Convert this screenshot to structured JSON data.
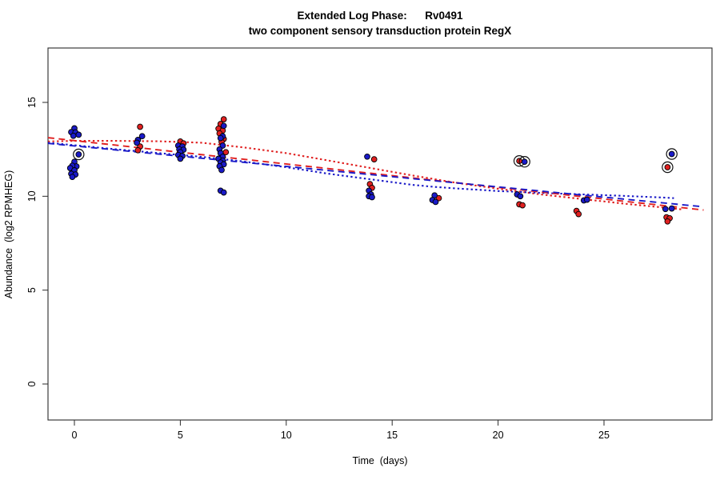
{
  "chart_data": {
    "type": "scatter",
    "title_line1": "Extended Log Phase:      Rv0491",
    "title_line2": "two component sensory transduction protein RegX",
    "xlabel": "Time  (days)",
    "ylabel": "Abundance  (log2 RPMHEG)",
    "x_ticks": [
      0,
      5,
      10,
      15,
      20,
      25
    ],
    "y_ticks": [
      0,
      5,
      10,
      15
    ],
    "xlim": [
      -1.25,
      30.1
    ],
    "ylim": [
      -1.9,
      17.9
    ],
    "grid": false,
    "legend": "none",
    "colors": {
      "red": "#e02020",
      "blue": "#1a1ac8",
      "point_outline": "#000000",
      "box": "#2a2a2a",
      "circled_ring": "#111111"
    },
    "series": [
      {
        "name": "red-condition-points",
        "color": "red",
        "points": [
          [
            3.1,
            13.7
          ],
          [
            3.1,
            12.65
          ],
          [
            3.0,
            12.45
          ],
          [
            5.0,
            12.92
          ],
          [
            5.15,
            12.82
          ],
          [
            7.05,
            14.1
          ],
          [
            6.9,
            13.85
          ],
          [
            6.8,
            13.6
          ],
          [
            7.0,
            13.5
          ],
          [
            6.85,
            13.35
          ],
          [
            7.05,
            13.05
          ],
          [
            6.95,
            12.9
          ],
          [
            7.15,
            12.35
          ],
          [
            14.15,
            11.97
          ],
          [
            13.95,
            10.65
          ],
          [
            14.05,
            10.45
          ],
          [
            17.2,
            9.9
          ],
          [
            21.0,
            9.57
          ],
          [
            21.15,
            9.52
          ],
          [
            23.7,
            9.22
          ],
          [
            23.8,
            9.05
          ],
          [
            27.95,
            8.88
          ],
          [
            28.1,
            8.83
          ],
          [
            28.0,
            8.66
          ]
        ]
      },
      {
        "name": "blue-condition-points",
        "color": "blue",
        "points": [
          [
            0.0,
            13.62
          ],
          [
            -0.15,
            13.42
          ],
          [
            0.05,
            13.4
          ],
          [
            0.2,
            13.28
          ],
          [
            -0.05,
            13.22
          ],
          [
            0.0,
            11.84
          ],
          [
            0.1,
            11.59
          ],
          [
            -0.1,
            11.63
          ],
          [
            -0.2,
            11.5
          ],
          [
            0.0,
            11.38
          ],
          [
            -0.15,
            11.2
          ],
          [
            0.05,
            11.16
          ],
          [
            -0.1,
            11.03
          ],
          [
            3.2,
            13.2
          ],
          [
            3.0,
            13.0
          ],
          [
            2.95,
            12.85
          ],
          [
            4.9,
            12.7
          ],
          [
            5.1,
            12.65
          ],
          [
            4.95,
            12.5
          ],
          [
            5.15,
            12.48
          ],
          [
            5.0,
            12.35
          ],
          [
            4.9,
            12.2
          ],
          [
            5.1,
            12.15
          ],
          [
            5.0,
            12.0
          ],
          [
            7.05,
            13.75
          ],
          [
            7.0,
            13.2
          ],
          [
            6.9,
            13.1
          ],
          [
            7.0,
            12.7
          ],
          [
            6.85,
            12.5
          ],
          [
            6.9,
            12.3
          ],
          [
            7.0,
            12.1
          ],
          [
            6.8,
            12.0
          ],
          [
            7.0,
            11.9
          ],
          [
            6.9,
            11.8
          ],
          [
            7.05,
            11.7
          ],
          [
            6.85,
            11.6
          ],
          [
            6.95,
            11.4
          ],
          [
            6.9,
            10.3
          ],
          [
            7.05,
            10.2
          ],
          [
            13.82,
            12.11
          ],
          [
            13.9,
            10.3
          ],
          [
            14.0,
            10.1
          ],
          [
            13.9,
            10.0
          ],
          [
            14.05,
            9.95
          ],
          [
            17.0,
            10.05
          ],
          [
            16.9,
            9.8
          ],
          [
            17.05,
            9.7
          ],
          [
            20.9,
            10.1
          ],
          [
            21.05,
            10.0
          ],
          [
            24.05,
            9.78
          ],
          [
            24.2,
            9.82
          ],
          [
            27.9,
            9.32
          ],
          [
            28.2,
            9.35
          ]
        ]
      }
    ],
    "circled_points": [
      {
        "x": 0.2,
        "y": 12.23,
        "color": "blue"
      },
      {
        "x": 21.0,
        "y": 11.88,
        "color": "red"
      },
      {
        "x": 21.25,
        "y": 11.84,
        "color": "blue"
      },
      {
        "x": 28.2,
        "y": 12.25,
        "color": "blue"
      },
      {
        "x": 28.0,
        "y": 11.55,
        "color": "red"
      }
    ],
    "trend_lines": [
      {
        "name": "red-loess-dotted",
        "color": "red",
        "style": "dotted",
        "points": [
          [
            -1.25,
            12.92
          ],
          [
            0,
            12.95
          ],
          [
            2,
            12.95
          ],
          [
            4,
            12.93
          ],
          [
            6,
            12.85
          ],
          [
            8,
            12.6
          ],
          [
            10,
            12.3
          ],
          [
            12,
            11.9
          ],
          [
            14,
            11.5
          ],
          [
            16,
            11.1
          ],
          [
            18,
            10.72
          ],
          [
            20,
            10.4
          ],
          [
            22,
            10.1
          ],
          [
            24,
            9.85
          ],
          [
            26,
            9.6
          ],
          [
            28,
            9.38
          ],
          [
            28.7,
            9.3
          ]
        ]
      },
      {
        "name": "blue-loess-dotted",
        "color": "blue",
        "style": "dotted",
        "points": [
          [
            -1.25,
            12.85
          ],
          [
            0,
            12.72
          ],
          [
            2,
            12.5
          ],
          [
            4,
            12.3
          ],
          [
            6,
            12.1
          ],
          [
            8,
            11.85
          ],
          [
            10,
            11.55
          ],
          [
            12,
            11.2
          ],
          [
            13,
            11.05
          ],
          [
            14,
            10.9
          ],
          [
            15,
            10.75
          ],
          [
            16,
            10.6
          ],
          [
            17,
            10.5
          ],
          [
            18,
            10.42
          ],
          [
            19,
            10.35
          ],
          [
            20,
            10.28
          ],
          [
            22,
            10.18
          ],
          [
            24,
            10.1
          ],
          [
            26,
            10.02
          ],
          [
            28,
            9.92
          ],
          [
            28.3,
            9.9
          ]
        ]
      },
      {
        "name": "red-linear-dashed",
        "color": "red",
        "style": "dashed",
        "points": [
          [
            -1.25,
            13.12
          ],
          [
            29.7,
            9.27
          ]
        ]
      },
      {
        "name": "blue-linear-dashed",
        "color": "blue",
        "style": "dashed",
        "points": [
          [
            -1.25,
            12.82
          ],
          [
            29.7,
            9.44
          ]
        ]
      }
    ]
  }
}
